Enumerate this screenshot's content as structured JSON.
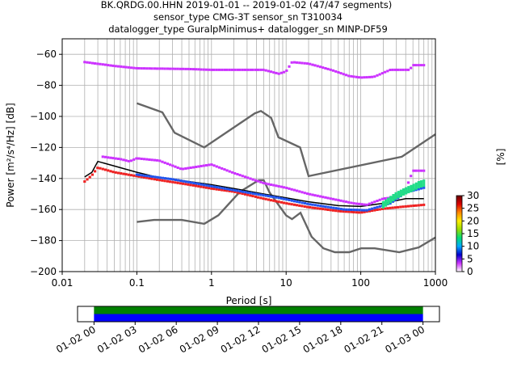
{
  "title_lines": [
    "BK.QRDG.00.HHN   2019-01-01 -- 2019-01-02  (47/47 segments)",
    "sensor_type CMG-3T sensor_sn T310034",
    "datalogger_type GuralpMinimus+ datalogger_sn MINP-DF59"
  ],
  "chart_data": {
    "type": "scatter",
    "xlabel": "Period [s]",
    "ylabel": "Power [m²/s⁴/Hz] [dB]",
    "xscale": "log",
    "xlim": [
      0.01,
      1000
    ],
    "ylim": [
      -200,
      -50
    ],
    "x_ticks": [
      {
        "value": 0.01,
        "label": "0.01"
      },
      {
        "value": 0.1,
        "label": "0.1"
      },
      {
        "value": 1,
        "label": "1"
      },
      {
        "value": 10,
        "label": "10"
      },
      {
        "value": 100,
        "label": "100"
      },
      {
        "value": 1000,
        "label": "1000"
      }
    ],
    "y_ticks": [
      {
        "value": -60,
        "label": "−60"
      },
      {
        "value": -80,
        "label": "−80"
      },
      {
        "value": -100,
        "label": "−100"
      },
      {
        "value": -120,
        "label": "−120"
      },
      {
        "value": -140,
        "label": "−140"
      },
      {
        "value": -160,
        "label": "−160"
      },
      {
        "value": -180,
        "label": "−180"
      },
      {
        "value": -200,
        "label": "−200"
      }
    ],
    "grid": true,
    "series": [
      {
        "role": "nhnm",
        "color": "#666666",
        "points": [
          [
            0.1,
            -168
          ],
          [
            0.17,
            -166.7
          ],
          [
            0.4,
            -166.7
          ],
          [
            0.8,
            -169.2
          ],
          [
            1.24,
            -163.7
          ],
          [
            2.4,
            -148.6
          ],
          [
            4.3,
            -141.1
          ],
          [
            5,
            -141.1
          ],
          [
            6,
            -149
          ],
          [
            10,
            -163.8
          ],
          [
            12,
            -166.2
          ],
          [
            15.6,
            -162.1
          ],
          [
            21.9,
            -177.5
          ],
          [
            31.6,
            -185
          ],
          [
            45,
            -187.5
          ],
          [
            70,
            -187.5
          ],
          [
            101,
            -185
          ],
          [
            154,
            -185
          ],
          [
            328,
            -187.5
          ],
          [
            600,
            -184.4
          ],
          [
            1000,
            -178
          ]
        ]
      },
      {
        "role": "nlnm",
        "color": "#666666",
        "points": [
          [
            0.1,
            -91.5
          ],
          [
            0.22,
            -97.4
          ],
          [
            0.32,
            -110.5
          ],
          [
            0.8,
            -120
          ],
          [
            3.8,
            -98
          ],
          [
            4.6,
            -96.5
          ],
          [
            6.3,
            -101
          ],
          [
            7.9,
            -113.5
          ],
          [
            15.4,
            -120
          ],
          [
            20,
            -138.5
          ],
          [
            354.8,
            -126
          ],
          [
            1000,
            -111.5
          ]
        ]
      },
      {
        "role": "mode",
        "color": "#000000",
        "points": [
          [
            0.02,
            -139
          ],
          [
            0.025,
            -136
          ],
          [
            0.03,
            -129
          ],
          [
            0.05,
            -132
          ],
          [
            0.1,
            -136
          ],
          [
            0.2,
            -139.5
          ],
          [
            0.5,
            -142
          ],
          [
            1,
            -144
          ],
          [
            2,
            -146.5
          ],
          [
            5,
            -150
          ],
          [
            10,
            -152.5
          ],
          [
            20,
            -155
          ],
          [
            50,
            -157.5
          ],
          [
            100,
            -158
          ],
          [
            200,
            -156
          ],
          [
            400,
            -153
          ],
          [
            700,
            -153
          ]
        ]
      },
      {
        "role": "upper-envelope",
        "color": "#cc33ff",
        "points": [
          [
            0.02,
            -65
          ],
          [
            0.05,
            -67.5
          ],
          [
            0.1,
            -69
          ],
          [
            0.5,
            -69.5
          ],
          [
            1,
            -70
          ],
          [
            5,
            -70
          ],
          [
            8,
            -72.5
          ],
          [
            10,
            -71
          ],
          [
            12,
            -65
          ],
          [
            20,
            -66
          ],
          [
            40,
            -70
          ],
          [
            70,
            -74
          ],
          [
            100,
            -75
          ],
          [
            150,
            -74.5
          ],
          [
            250,
            -70
          ],
          [
            450,
            -70
          ],
          [
            500,
            -67
          ],
          [
            700,
            -67
          ]
        ]
      },
      {
        "role": "spread-high",
        "color": "#cc33ff",
        "points": [
          [
            0.035,
            -126
          ],
          [
            0.06,
            -127.5
          ],
          [
            0.08,
            -129
          ],
          [
            0.1,
            -127
          ],
          [
            0.2,
            -128.5
          ],
          [
            0.4,
            -134
          ],
          [
            1,
            -131
          ],
          [
            2,
            -136.5
          ],
          [
            5,
            -143
          ],
          [
            10,
            -146
          ],
          [
            20,
            -150
          ],
          [
            40,
            -153
          ],
          [
            80,
            -156
          ],
          [
            120,
            -157
          ],
          [
            200,
            -153
          ],
          [
            300,
            -152
          ],
          [
            400,
            -147
          ],
          [
            500,
            -135
          ],
          [
            700,
            -135
          ]
        ]
      },
      {
        "role": "spread-low",
        "color": "#ee2222",
        "points": [
          [
            0.02,
            -142
          ],
          [
            0.025,
            -138
          ],
          [
            0.03,
            -133
          ],
          [
            0.05,
            -136
          ],
          [
            0.1,
            -138.5
          ],
          [
            0.2,
            -141
          ],
          [
            0.5,
            -144
          ],
          [
            1,
            -146.5
          ],
          [
            2,
            -148.5
          ],
          [
            5,
            -153
          ],
          [
            10,
            -156
          ],
          [
            20,
            -158.5
          ],
          [
            50,
            -161
          ],
          [
            100,
            -162
          ],
          [
            200,
            -159.5
          ],
          [
            400,
            -158
          ],
          [
            700,
            -157
          ]
        ]
      },
      {
        "role": "dense-band",
        "color": "#2255ee",
        "points": [
          [
            0.1,
            -137.5
          ],
          [
            0.3,
            -140.5
          ],
          [
            1,
            -145
          ],
          [
            3,
            -149
          ],
          [
            8,
            -152.5
          ],
          [
            20,
            -156.5
          ],
          [
            60,
            -160
          ],
          [
            120,
            -160.5
          ],
          [
            250,
            -156
          ],
          [
            400,
            -149
          ],
          [
            700,
            -146
          ]
        ]
      },
      {
        "role": "peak-band",
        "color": "#22dd88",
        "points": [
          [
            200,
            -157
          ],
          [
            300,
            -151
          ],
          [
            400,
            -148
          ],
          [
            500,
            -146
          ],
          [
            600,
            -144
          ],
          [
            700,
            -143
          ]
        ]
      }
    ],
    "colorbar": {
      "label": "[%]",
      "ticks": [
        "0",
        "5",
        "10",
        "15",
        "20",
        "25",
        "30"
      ],
      "colors": [
        "#ffffff",
        "#cc33ff",
        "#0000cc",
        "#00aaff",
        "#00dd77",
        "#99dd00",
        "#ffee00",
        "#ff8800",
        "#dd0000",
        "#660000"
      ]
    },
    "timeline": {
      "labels": [
        "01-02 00",
        "01-02 03",
        "01-02 06",
        "01-02 09",
        "01-02 12",
        "01-02 15",
        "01-02 18",
        "01-02 21",
        "01-03 00"
      ],
      "bands": [
        {
          "color": "#008000",
          "start_hours": 0,
          "end_hours": 24
        },
        {
          "color": "#0000ff",
          "start_hours": 0,
          "end_hours": 24
        }
      ],
      "range_hours": [
        -1.2,
        25.2
      ]
    }
  }
}
